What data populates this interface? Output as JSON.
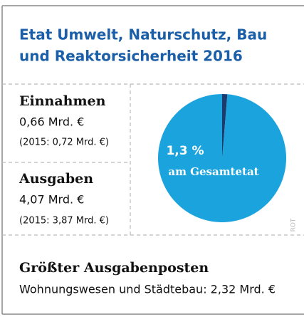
{
  "chart_data": {
    "type": "pie",
    "title": "Etat Umwelt, Naturschutz, Bau",
    "subtitle": "und Reaktorsicherheit 2016",
    "income": {
      "heading": "Einnahmen",
      "amount": "0,66 Mrd. €",
      "previous": "(2015: 0,72 Mrd. €)"
    },
    "expenses": {
      "heading": "Ausgaben",
      "amount": "4,07 Mrd. €",
      "previous": "(2015: 3,87 Mrd. €)"
    },
    "values": [
      1.3,
      98.7
    ],
    "value_labels": [
      "1,3 %",
      null
    ],
    "colors": [
      "#1c3a6b",
      "#1aa3dc"
    ],
    "annotation": "am Gesamtetat",
    "largest_item": {
      "heading": "Größter Ausgabenposten",
      "text": "Wohnungswesen und Städtebau: 2,32 Mrd. €"
    },
    "credit": "ROT"
  }
}
